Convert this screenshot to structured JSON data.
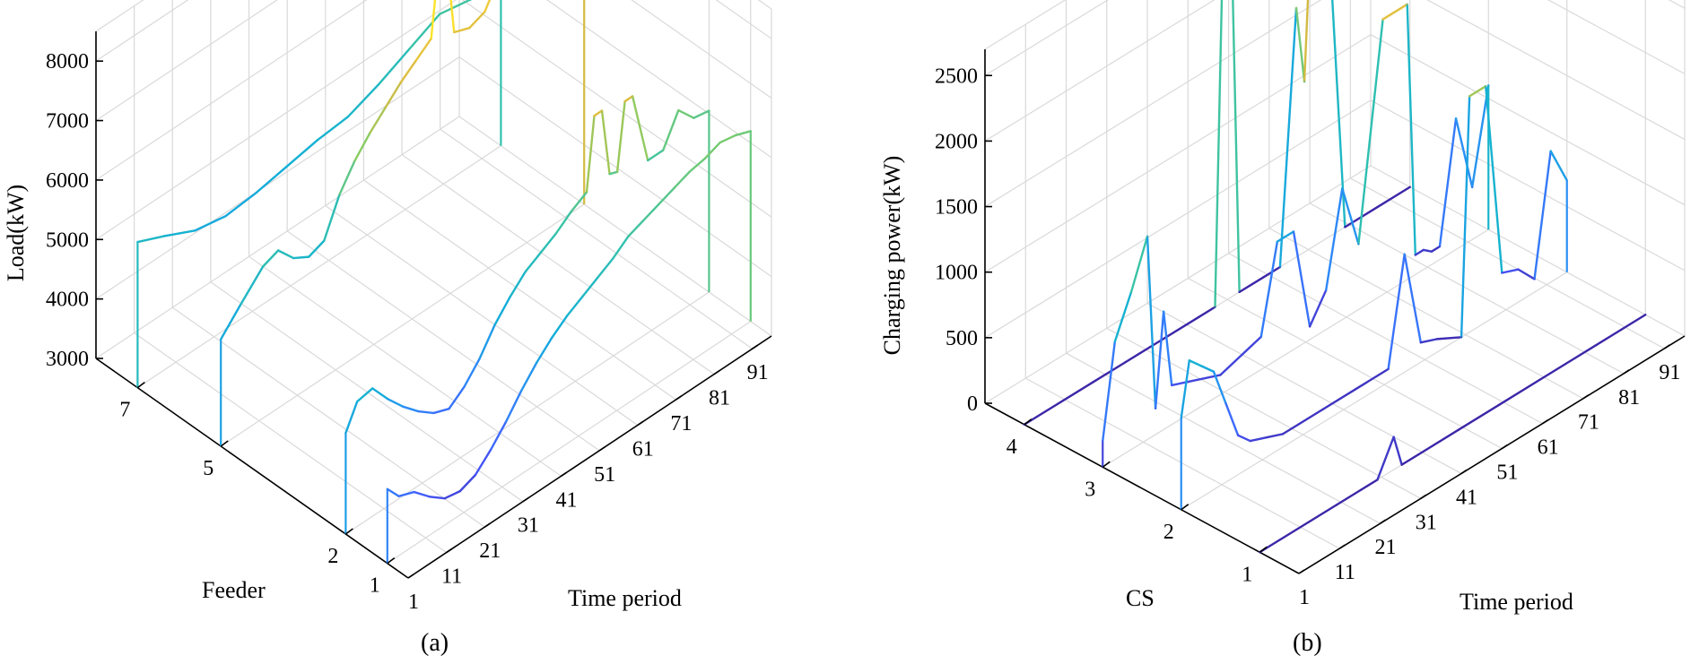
{
  "figure": {
    "panel_a_label": "(a)",
    "panel_b_label": "(b)"
  },
  "chart_data": [
    {
      "type": "line3d",
      "panel": "(a)",
      "zlabel": "Load(kW)",
      "ylabel": "Feeder",
      "xlabel": "Time period",
      "zticks": [
        "3000",
        "4000",
        "5000",
        "6000",
        "7000",
        "8000"
      ],
      "yticks": [
        "7",
        "5",
        "2",
        "1"
      ],
      "xticks": [
        "1",
        "11",
        "21",
        "31",
        "41",
        "51",
        "61",
        "71",
        "81",
        "91"
      ],
      "xlim": [
        1,
        96
      ],
      "ylim": [
        0.5,
        8
      ],
      "zlim": [
        3000,
        8500
      ],
      "series": [
        {
          "name": "Feeder 7",
          "y": 7,
          "x": [
            1,
            8,
            16,
            24,
            32,
            40,
            48,
            56,
            64,
            72,
            80,
            88,
            96
          ],
          "values": [
            5450,
            5250,
            5000,
            4900,
            4950,
            5050,
            5150,
            5200,
            5400,
            5650,
            5900,
            5800,
            5700
          ]
        },
        {
          "name": "Feeder 5",
          "y": 5,
          "x": [
            1,
            6,
            12,
            16,
            20,
            24,
            28,
            32,
            36,
            40,
            44,
            48,
            52,
            56,
            58,
            60,
            62,
            66,
            70,
            74,
            76,
            78,
            80,
            84,
            88,
            92,
            96
          ],
          "values": [
            4800,
            5150,
            5550,
            5650,
            5350,
            5200,
            5300,
            5900,
            6300,
            6600,
            6850,
            7100,
            7300,
            7500,
            8700,
            8700,
            7350,
            7250,
            7350,
            7800,
            7600,
            8300,
            8200,
            7700,
            7500,
            7200,
            7100
          ]
        },
        {
          "name": "Feeder 2",
          "y": 2,
          "x": [
            1,
            4,
            8,
            12,
            16,
            20,
            24,
            28,
            32,
            36,
            40,
            44,
            48,
            52,
            56,
            60,
            64,
            66,
            68,
            70,
            72,
            74,
            76,
            80,
            84,
            88,
            92,
            96
          ],
          "values": [
            4700,
            5100,
            5150,
            4800,
            4500,
            4250,
            4050,
            3950,
            4150,
            4450,
            4850,
            5150,
            5400,
            5550,
            5700,
            5900,
            6050,
            7250,
            7250,
            6100,
            6050,
            7150,
            7150,
            5900,
            5900,
            6400,
            6100,
            6050
          ]
        },
        {
          "name": "Feeder 1",
          "y": 1,
          "x": [
            1,
            4,
            8,
            12,
            16,
            20,
            24,
            28,
            32,
            36,
            40,
            44,
            48,
            52,
            56,
            60,
            64,
            68,
            72,
            76,
            80,
            84,
            88,
            92,
            96
          ],
          "values": [
            4250,
            4000,
            3900,
            3650,
            3450,
            3400,
            3500,
            3750,
            4050,
            4400,
            4700,
            4950,
            5150,
            5300,
            5450,
            5600,
            5800,
            5900,
            6000,
            6100,
            6200,
            6250,
            6350,
            6300,
            6200
          ]
        }
      ]
    },
    {
      "type": "line3d",
      "panel": "(b)",
      "zlabel": "Charging power(kW)",
      "ylabel": "CS",
      "xlabel": "Time period",
      "zticks": [
        "0",
        "500",
        "1000",
        "1500",
        "2000",
        "2500"
      ],
      "yticks": [
        "4",
        "3",
        "2",
        "1"
      ],
      "xticks": [
        "1",
        "11",
        "21",
        "31",
        "41",
        "51",
        "61",
        "71",
        "81",
        "91"
      ],
      "xlim": [
        1,
        96
      ],
      "ylim": [
        0.5,
        4.5
      ],
      "zlim": [
        0,
        2700
      ],
      "series": [
        {
          "name": "CS 4",
          "y": 4,
          "x": [
            1,
            18,
            26,
            32,
            44,
            48,
            50,
            52,
            54,
            60,
            64,
            68,
            70,
            72,
            76,
            80,
            84,
            88,
            96
          ],
          "values": [
            0,
            0,
            0,
            0,
            0,
            0,
            2800,
            2800,
            0,
            0,
            0,
            1900,
            1300,
            2700,
            2300,
            0,
            0,
            0,
            0
          ]
        },
        {
          "name": "CS 3",
          "y": 3,
          "x": [
            1,
            4,
            8,
            12,
            14,
            16,
            18,
            22,
            30,
            40,
            44,
            48,
            52,
            56,
            60,
            64,
            70,
            76,
            78,
            80,
            82,
            84,
            88,
            92,
            96
          ],
          "values": [
            200,
            900,
            1200,
            1550,
            200,
            900,
            300,
            250,
            150,
            250,
            900,
            900,
            100,
            300,
            1000,
            500,
            2100,
            2100,
            150,
            150,
            100,
            100,
            1000,
            400,
            1100
          ]
        },
        {
          "name": "CS 2",
          "y": 2,
          "x": [
            1,
            3,
            6,
            9,
            12,
            15,
            18,
            22,
            26,
            30,
            36,
            44,
            52,
            56,
            60,
            64,
            70,
            72,
            76,
            80,
            84,
            88,
            92,
            96
          ],
          "values": [
            700,
            1100,
            1000,
            900,
            600,
            300,
            200,
            150,
            100,
            100,
            100,
            100,
            100,
            900,
            150,
            100,
            0,
            1800,
            1800,
            300,
            250,
            100,
            1000,
            700
          ]
        },
        {
          "name": "CS 1",
          "y": 1,
          "x": [
            1,
            20,
            26,
            30,
            34,
            36,
            40,
            50,
            60,
            70,
            80,
            84,
            90,
            96
          ],
          "values": [
            0,
            0,
            0,
            0,
            250,
            0,
            0,
            0,
            0,
            0,
            0,
            0,
            0,
            0
          ]
        }
      ]
    }
  ]
}
